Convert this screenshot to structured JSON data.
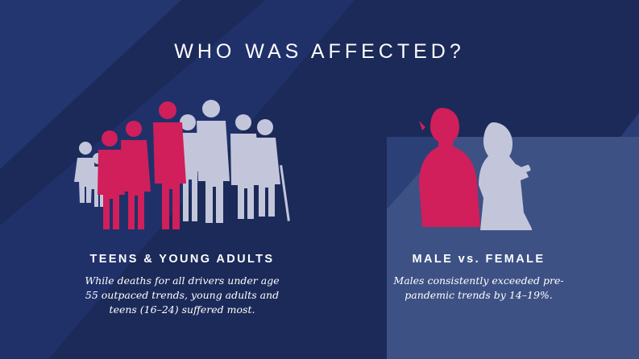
{
  "title": "WHO WAS AFFECTED?",
  "left_panel": {
    "heading": "TEENS & YOUNG ADULTS",
    "body": "While deaths for all drivers under age 55 outpaced trends, young adults and teens (16–24) suffered most.",
    "figures_icon": "group-of-people-silhouettes-icon"
  },
  "right_panel": {
    "heading": "MALE vs. FEMALE",
    "body": "Males consistently exceeded pre-pandemic trends by 14–19%.",
    "male_icon": "male-silhouette-icon",
    "female_icon": "female-silhouette-icon"
  },
  "colors": {
    "background_dark": "#1b2a58",
    "band_light": "#233670",
    "panel_right": "#3d5184",
    "highlight": "#d01f5a",
    "neutral": "#c3c6da"
  }
}
